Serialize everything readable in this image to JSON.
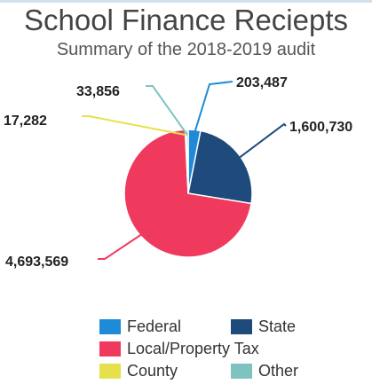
{
  "chart_data": {
    "type": "pie",
    "title": "School Finance Reciepts",
    "subtitle": "Summary of the 2018-2019 audit",
    "slices": [
      {
        "label": "Federal",
        "value": 203487,
        "display": "203,487",
        "color": "#1f8ad8"
      },
      {
        "label": "State",
        "value": 1600730,
        "display": "1,600,730",
        "color": "#1e4b7c"
      },
      {
        "label": "Local/Property Tax",
        "value": 4693569,
        "display": "4,693,569",
        "color": "#ef3a5d"
      },
      {
        "label": "County",
        "value": 17282,
        "display": "17,282",
        "color": "#e6e14a"
      },
      {
        "label": "Other",
        "value": 33856,
        "display": "33,856",
        "color": "#7fc3c0"
      }
    ],
    "legend": [
      {
        "label": "Federal",
        "color": "#1f8ad8"
      },
      {
        "label": "State",
        "color": "#1e4b7c"
      },
      {
        "label": "Local/Property Tax",
        "color": "#ef3a5d"
      },
      {
        "label": "County",
        "color": "#e6e14a"
      },
      {
        "label": "Other",
        "color": "#7fc3c0"
      }
    ],
    "legend_position": "bottom"
  }
}
